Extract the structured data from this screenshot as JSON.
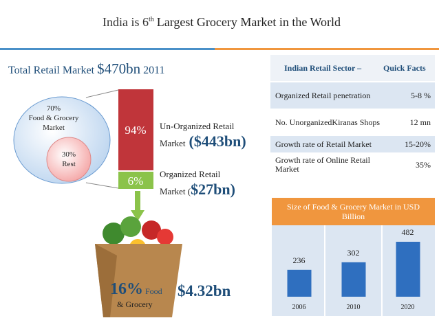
{
  "title": {
    "text": "India is 6",
    "sup": "th",
    "rest": "Largest Grocery Market in the World"
  },
  "total": {
    "label": "Total Retail Market",
    "amount": "$470bn",
    "year": "2011"
  },
  "split": {
    "food_pct": "70%",
    "food_label_1": "Food & Grocery",
    "food_label_2": "Market",
    "rest_pct": "30%",
    "rest_label": "Rest"
  },
  "retail": {
    "unorganized_pct": "94%",
    "unorganized_label_1": "Un-Organized Retail",
    "unorganized_label_2": "Market",
    "unorganized_amount": "($443bn)",
    "organized_pct": "6%",
    "organized_label_1": "Organized Retail",
    "organized_label_2": "Market (",
    "organized_amount": "$27bn)"
  },
  "grocery": {
    "pct": "16%",
    "label_1": "Food",
    "label_2": "& Grocery",
    "amount": "$4.32bn"
  },
  "quick_facts": {
    "title": "Indian Retail Sector –",
    "subtitle": "Quick Facts",
    "rows": [
      [
        "Organized Retail penetration",
        "5-8 %"
      ],
      [
        "No. UnorganizedKiranas Shops",
        "12 mn"
      ],
      [
        "Growth rate of Retail Market",
        "15-20%"
      ],
      [
        "Growth rate of Online Retail Market",
        "35%"
      ]
    ]
  },
  "chart_data": {
    "type": "bar",
    "title": "Size of Food & Grocery Market in USD Billion",
    "categories": [
      "2006",
      "2010",
      "2020"
    ],
    "values": [
      236,
      302,
      482
    ],
    "color": "#2f6fbf"
  }
}
